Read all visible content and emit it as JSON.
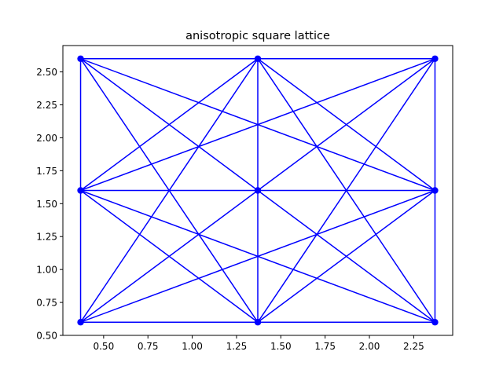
{
  "chart_data": {
    "type": "scatter",
    "title": "anisotropic square lattice",
    "xlabel": "",
    "ylabel": "",
    "xlim": [
      0.27,
      2.47
    ],
    "ylim": [
      0.5,
      2.7
    ],
    "xticks": [
      "0.50",
      "0.75",
      "1.00",
      "1.25",
      "1.50",
      "1.75",
      "2.00",
      "2.25"
    ],
    "yticks": [
      "0.50",
      "0.75",
      "1.00",
      "1.25",
      "1.50",
      "1.75",
      "2.00",
      "2.25",
      "2.50"
    ],
    "grid": false,
    "color": "#0000ff",
    "nodes": [
      {
        "x": 0.37,
        "y": 0.6
      },
      {
        "x": 1.37,
        "y": 0.6
      },
      {
        "x": 2.37,
        "y": 0.6
      },
      {
        "x": 0.37,
        "y": 1.6
      },
      {
        "x": 1.37,
        "y": 1.6
      },
      {
        "x": 2.37,
        "y": 1.6
      },
      {
        "x": 0.37,
        "y": 2.6
      },
      {
        "x": 1.37,
        "y": 2.6
      },
      {
        "x": 2.37,
        "y": 2.6
      }
    ],
    "edges": [
      [
        0,
        1
      ],
      [
        1,
        2
      ],
      [
        3,
        4
      ],
      [
        4,
        5
      ],
      [
        6,
        7
      ],
      [
        7,
        8
      ],
      [
        0,
        3
      ],
      [
        3,
        6
      ],
      [
        1,
        4
      ],
      [
        4,
        7
      ],
      [
        2,
        5
      ],
      [
        5,
        8
      ],
      [
        0,
        4
      ],
      [
        1,
        5
      ],
      [
        3,
        7
      ],
      [
        4,
        8
      ],
      [
        1,
        3
      ],
      [
        2,
        4
      ],
      [
        4,
        6
      ],
      [
        5,
        7
      ],
      [
        0,
        5
      ],
      [
        3,
        8
      ],
      [
        2,
        3
      ],
      [
        5,
        6
      ],
      [
        0,
        7
      ],
      [
        1,
        8
      ],
      [
        1,
        6
      ],
      [
        2,
        7
      ]
    ]
  }
}
